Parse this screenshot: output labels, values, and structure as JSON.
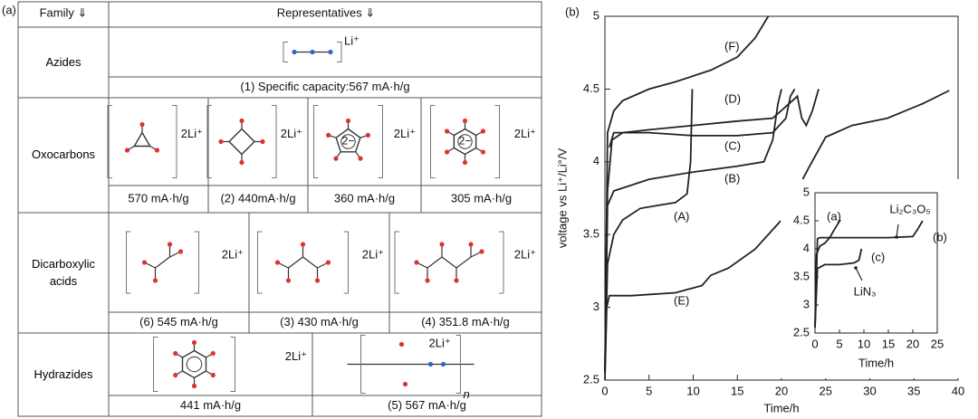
{
  "panel_a": {
    "label": "(a)",
    "header": [
      "Family ⇓",
      "Representatives ⇓"
    ],
    "rows": [
      {
        "family": "Azides",
        "items": [
          {
            "label": "Li⁺",
            "capacity": "(1) Specific capacity:567 mA·h/g"
          }
        ]
      },
      {
        "family": "Oxocarbons",
        "items": [
          {
            "label": "2Li⁺",
            "capacity": "570 mA·h/g"
          },
          {
            "label": "2Li⁺",
            "capacity": "(2) 440mA·h/g"
          },
          {
            "label": "2Li⁺",
            "capacity": "360 mA·h/g",
            "charge": "2−"
          },
          {
            "label": "2Li⁺",
            "capacity": "305 mA·h/g",
            "charge": "2−"
          }
        ]
      },
      {
        "family": "Dicarboxylic acids",
        "items": [
          {
            "label": "2Li⁺",
            "capacity": "(6) 545 mA·h/g"
          },
          {
            "label": "2Li⁺",
            "capacity": "(3) 430 mA·h/g"
          },
          {
            "label": "2Li⁺",
            "capacity": "(4) 351.8 mA·h/g"
          }
        ]
      },
      {
        "family": "Hydrazides",
        "items": [
          {
            "label": "2Li⁺",
            "capacity": "441 mA·h/g"
          },
          {
            "label": "2Li⁺",
            "capacity": "(5) 567 mA·h/g",
            "subscript": "n"
          }
        ]
      }
    ]
  },
  "panel_b_label": "(b)",
  "chart_data": [
    {
      "type": "line",
      "xlabel": "Time/h",
      "ylabel": "voltage vs Li⁺/Li°/V",
      "xlim": [
        0,
        40
      ],
      "ylim": [
        2.5,
        5
      ],
      "xticks": [
        0,
        5,
        10,
        15,
        20,
        25,
        30,
        35,
        40
      ],
      "yticks": [
        2.5,
        3,
        3.5,
        4,
        4.5,
        5
      ],
      "series": [
        {
          "name": "(F)",
          "color": "#222",
          "x": [
            0,
            0.3,
            1,
            2,
            5,
            8,
            12,
            15,
            17,
            18.5
          ],
          "values": [
            2.55,
            4.2,
            4.35,
            4.42,
            4.5,
            4.55,
            4.63,
            4.72,
            4.85,
            5.0
          ]
        },
        {
          "name": "(D)",
          "color": "#222",
          "x": [
            0,
            0.3,
            0.8,
            2,
            5,
            10,
            15,
            19,
            20.5,
            21.8,
            22.3,
            22.8,
            23.5,
            24.2
          ],
          "values": [
            2.55,
            3.8,
            4.15,
            4.2,
            4.22,
            4.25,
            4.28,
            4.3,
            4.38,
            4.45,
            4.3,
            4.25,
            4.35,
            4.5
          ]
        },
        {
          "name": "(C)",
          "color": "#222",
          "x": [
            0.5,
            1,
            5,
            10,
            15,
            19,
            20.5,
            21,
            21.5
          ],
          "values": [
            4.1,
            4.2,
            4.2,
            4.18,
            4.18,
            4.2,
            4.3,
            4.45,
            4.5
          ]
        },
        {
          "name": "(B)",
          "color": "#222",
          "x": [
            0,
            0.3,
            1,
            5,
            10,
            15,
            18,
            19,
            19.6,
            20
          ],
          "values": [
            2.55,
            3.7,
            3.8,
            3.88,
            3.93,
            3.97,
            4.0,
            4.15,
            4.4,
            4.5
          ]
        },
        {
          "name": "(A)",
          "color": "#222",
          "x": [
            0,
            0.3,
            1,
            2,
            4,
            6,
            8,
            9.3,
            9.7,
            9.9
          ],
          "values": [
            2.55,
            3.3,
            3.5,
            3.6,
            3.68,
            3.7,
            3.72,
            3.78,
            4.0,
            4.5
          ]
        },
        {
          "name": "(E)",
          "color": "#222",
          "x": [
            0,
            0.2,
            0.5,
            3,
            8,
            11,
            12,
            14,
            17,
            20,
            23,
            25,
            28,
            32,
            36,
            39
          ],
          "values": [
            2.5,
            3.0,
            3.08,
            3.08,
            3.1,
            3.15,
            3.22,
            3.27,
            3.4,
            3.6,
            3.95,
            4.17,
            4.25,
            4.3,
            4.4,
            4.49
          ]
        }
      ]
    },
    {
      "type": "line",
      "xlabel": "Time/h",
      "xlim": [
        0,
        25
      ],
      "ylim": [
        2.5,
        5
      ],
      "xticks": [
        0,
        5,
        10,
        15,
        20,
        25
      ],
      "yticks": [
        2.5,
        3,
        3.5,
        4,
        4.5,
        5
      ],
      "annotations": [
        "Li₂C₃O₅",
        "LiN₃"
      ],
      "series": [
        {
          "name": "(a)",
          "color": "#222",
          "x": [
            0,
            0.3,
            1,
            2,
            3,
            4,
            5.2
          ],
          "values": [
            2.6,
            3.9,
            4.05,
            4.1,
            4.2,
            4.35,
            4.52
          ]
        },
        {
          "name": "(b)",
          "color": "#222",
          "x": [
            0,
            0.5,
            1,
            5,
            10,
            15,
            20,
            21,
            22
          ],
          "values": [
            2.6,
            4.18,
            4.2,
            4.2,
            4.2,
            4.2,
            4.22,
            4.35,
            4.5
          ]
        },
        {
          "name": "(c)",
          "color": "#222",
          "x": [
            0,
            0.5,
            2,
            5,
            8,
            9,
            9.5
          ],
          "values": [
            2.6,
            3.65,
            3.72,
            3.72,
            3.75,
            3.8,
            4.0
          ]
        }
      ]
    }
  ]
}
